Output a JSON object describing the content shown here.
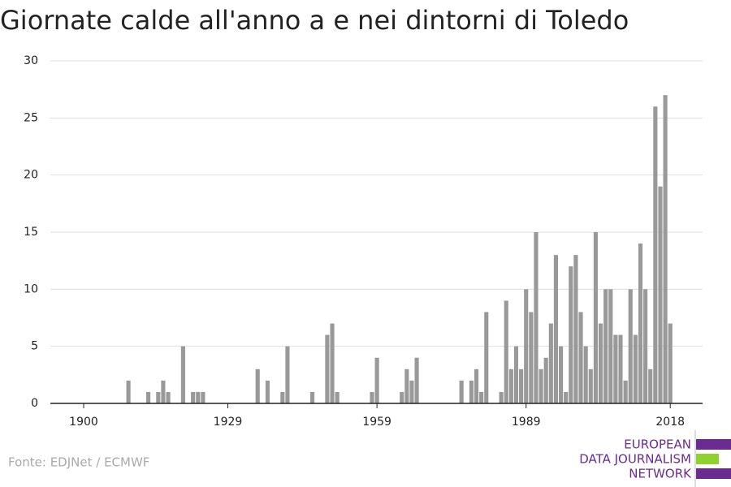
{
  "chart_data": {
    "type": "bar",
    "title": "Giornate calde all'anno a e nei dintorni di Toledo",
    "source": "Fonte: EDJNet / ECMWF",
    "logo": [
      "EUROPEAN",
      "DATA JOURNALISM",
      "NETWORK"
    ],
    "color": "#999999",
    "x": [
      1900,
      1901,
      1902,
      1903,
      1904,
      1905,
      1906,
      1907,
      1908,
      1909,
      1910,
      1911,
      1912,
      1913,
      1914,
      1915,
      1916,
      1917,
      1918,
      1919,
      1920,
      1921,
      1922,
      1923,
      1924,
      1925,
      1926,
      1927,
      1928,
      1929,
      1930,
      1931,
      1932,
      1933,
      1934,
      1935,
      1936,
      1937,
      1938,
      1939,
      1940,
      1941,
      1942,
      1943,
      1944,
      1945,
      1946,
      1947,
      1948,
      1949,
      1950,
      1951,
      1952,
      1953,
      1954,
      1955,
      1956,
      1957,
      1958,
      1959,
      1960,
      1961,
      1962,
      1963,
      1964,
      1965,
      1966,
      1967,
      1968,
      1969,
      1970,
      1971,
      1972,
      1973,
      1974,
      1975,
      1976,
      1977,
      1978,
      1979,
      1980,
      1981,
      1982,
      1983,
      1984,
      1985,
      1986,
      1987,
      1988,
      1989,
      1990,
      1991,
      1992,
      1993,
      1994,
      1995,
      1996,
      1997,
      1998,
      1999,
      2000,
      2001,
      2002,
      2003,
      2004,
      2005,
      2006,
      2007,
      2008,
      2009,
      2010,
      2011,
      2012,
      2013,
      2014,
      2015,
      2016,
      2017,
      2018
    ],
    "values": [
      0,
      0,
      0,
      0,
      0,
      0,
      0,
      0,
      0,
      2,
      0,
      0,
      0,
      1,
      0,
      1,
      2,
      1,
      0,
      0,
      5,
      0,
      1,
      1,
      1,
      0,
      0,
      0,
      0,
      0,
      0,
      0,
      0,
      0,
      0,
      3,
      0,
      2,
      0,
      0,
      1,
      5,
      0,
      0,
      0,
      0,
      1,
      0,
      0,
      6,
      7,
      1,
      0,
      0,
      0,
      0,
      0,
      0,
      1,
      4,
      0,
      0,
      0,
      0,
      1,
      3,
      2,
      4,
      0,
      0,
      0,
      0,
      0,
      0,
      0,
      0,
      2,
      0,
      2,
      3,
      1,
      8,
      0,
      0,
      1,
      9,
      3,
      5,
      3,
      10,
      8,
      15,
      3,
      4,
      7,
      13,
      5,
      1,
      12,
      13,
      8,
      5,
      3,
      15,
      7,
      10,
      10,
      6,
      6,
      2,
      10,
      6,
      14,
      10,
      3,
      26,
      19,
      27,
      7
    ],
    "xlim": [
      1893.3,
      2024.5
    ],
    "xticks": [
      1900,
      1929,
      1959,
      1989,
      2018
    ],
    "ylim": [
      0,
      30
    ],
    "yticks": [
      0,
      5,
      10,
      15,
      20,
      25,
      30
    ],
    "grid": true
  }
}
